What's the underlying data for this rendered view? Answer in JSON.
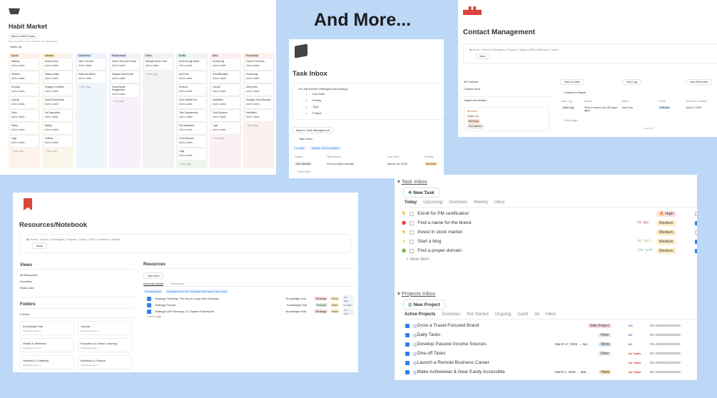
{
  "headline": "And More...",
  "habit_market": {
    "icon": "basket-icon",
    "title": "Habit Market",
    "back_button": "Back to Habit Tracker",
    "hint": "Press the button to add a habit to your habit tracker.",
    "view": "Habits List",
    "add_label": "Add to habits",
    "new_page": "+ New page",
    "columns": [
      {
        "name": "Sports",
        "bg": "#fdf3ec",
        "hd": "#f7d9c3",
        "items": [
          "Walking",
          "Workout",
          "Running",
          "Cycling",
          "Swim",
          "Hiking",
          "Yoga"
        ]
      },
      {
        "name": "Lifestyle",
        "bg": "#fbf6ea",
        "hd": "#f6e3a8",
        "items": [
          "Read a Book",
          "Wakeup Early",
          "Engage in Hobbies",
          "Avoid Social Media",
          "Eat Vegetables",
          "Baking",
          "Knitting"
        ]
      },
      {
        "name": "Cleanliness",
        "bg": "#eef5fb",
        "hd": "#cfe3f5",
        "items": [
          "Take a Shower",
          "Wash the dishes"
        ]
      },
      {
        "name": "Relationships",
        "bg": "#f6f1fb",
        "hd": "#e4d7f3",
        "items": [
          "Spend Time with Family",
          "Hangout with Friends",
          "Social Media Engagement"
        ]
      },
      {
        "name": "Detox",
        "bg": "#f3f3f2",
        "hd": "#e3e2e0",
        "items": [
          "Manage Screen Time"
        ]
      },
      {
        "name": "Health",
        "bg": "#eff6f0",
        "hd": "#d3e8d6",
        "items": [
          "Drink Enough Water",
          "Eat Fruits",
          "Workout",
          "Drink Healthy Tea",
          "Take Supplements",
          "Eat Vegetables",
          "Cold Exposure",
          "Yoga"
        ]
      },
      {
        "name": "Mind",
        "bg": "#fbf0f3",
        "hd": "#f4d6e0",
        "items": [
          "Envisioning",
          "Self-Affirmation",
          "Journal",
          "Meditation",
          "Cold Exposure",
          "Yoga"
        ]
      },
      {
        "name": "Productivity",
        "bg": "#fbf1ef",
        "hd": "#f5d8d2",
        "items": [
          "Plan for Tomorrow",
          "Envisioning",
          "Deep Work",
          "Strategic Time Allocation",
          "Meditation"
        ]
      }
    ]
  },
  "task_inbox_page": {
    "icon": "box-icon",
    "title": "Task Inbox",
    "callout": "You will find the strategies that missing:",
    "bullets": [
      "Due Date",
      "Priority",
      "Type",
      "Project"
    ],
    "back_button": "Back to Task Management",
    "view": "Task Inbox",
    "filters": [
      "4 rules",
      "Status: Not Complete"
    ],
    "columns": [
      "Status",
      "Task Name",
      "Due Date",
      "Priority"
    ],
    "row": {
      "status": "Not Started",
      "name": "Find a proper domain",
      "due": "March 28, 2025",
      "priority": "Medium"
    },
    "new_item": "+ New item"
  },
  "contact": {
    "icon": "people-icon",
    "title": "Contact Management",
    "nav": [
      "Home",
      "Visions",
      "Strategies",
      "Projects",
      "Tasks",
      "CRM",
      "Notebook",
      "Habits"
    ],
    "more": "More",
    "side": [
      "All Contacts",
      "Contact Inbox"
    ],
    "reminders": "Today's Reminders",
    "reminder": {
      "title": "Birthday",
      "person": "Hulia Lou",
      "tag": "Birthday",
      "status": "Not started"
    },
    "buttons": [
      "New Contact",
      "New Log",
      "New Reminder"
    ],
    "view": "Contacts to Reach",
    "columns": [
      "New Log",
      "Status",
      "Name",
      "Circle",
      "Next Due Contact"
    ],
    "row": {
      "log": "New Log",
      "status": "Time to reach out! (33 days ago)",
      "name": "John Doe",
      "circle": "Friends",
      "due": "June 5, 2025"
    },
    "new_page": "+ New page",
    "count_label": "COUNT",
    "count": "1"
  },
  "resources": {
    "icon": "bookmark-icon",
    "title": "Resources/Notebook",
    "nav": [
      "Home",
      "Visions",
      "Strategies",
      "Projects",
      "Tasks",
      "CRM",
      "Notebook",
      "Habits"
    ],
    "more": "More",
    "views_title": "Views",
    "views": [
      "All Resources",
      "Favorites",
      "Read Later"
    ],
    "folders_title": "Folders",
    "folders_view": "Folders",
    "folders": [
      {
        "name": "Knowledge Hub",
        "count": "Total Resources: 3"
      },
      {
        "name": "Journal",
        "count": "Total Resources: 0"
      },
      {
        "name": "Health & Wellness",
        "count": "Total Resources: 0"
      },
      {
        "name": "Education & Online Learning",
        "count": "Total Resources: 1"
      },
      {
        "name": "Hobbies & Creativity",
        "count": "Total Resources: 0"
      },
      {
        "name": "Business & Finance",
        "count": "Total Resources: 0"
      }
    ],
    "res_title": "Resources",
    "add_new": "Add New",
    "tabs": [
      "Recently Added",
      "Resources"
    ],
    "filters": [
      "Created time",
      "Created time: On or before One week from now"
    ],
    "rows": [
      {
        "name": "Strategic Thinking: The Key to Long-Term Success",
        "hub": "Knowledge Hub",
        "tag": "Strategy",
        "type": "Note",
        "age": "4d ago"
      },
      {
        "name": "Strategy Prompt",
        "hub": "Knowledge Hub",
        "tag": "Prompt",
        "type": "Note",
        "age": "4d ago"
      },
      {
        "name": "Strategic Life Planning: 12 Chapter Framework",
        "hub": "Knowledge Hub",
        "tag": "Strategy",
        "type": "Note",
        "age": "1d ago"
      }
    ],
    "new_page": "+ New page"
  },
  "tasks": {
    "title": "Task Inbox",
    "new_task": "New Task",
    "tabs": [
      "Today",
      "Upcoming",
      "Overdues",
      "Weekly",
      "Inbox"
    ],
    "rows": [
      {
        "name": "Enroll for PM certification",
        "icon": "hand",
        "when": "",
        "priority": "🔥 High",
        "pcolor": "#fbe0e0",
        "done": false
      },
      {
        "name": "Find a name for the brand.",
        "icon": "red",
        "when": "5d ago",
        "priority": "Medium",
        "pcolor": "#fbecc8",
        "done": true
      },
      {
        "name": "Invest in stock market",
        "icon": "hand",
        "when": "",
        "priority": "Medium",
        "pcolor": "#fbecc8",
        "done": false
      },
      {
        "name": "Start a blog",
        "icon": "bolt",
        "when": "3d left",
        "priority": "Medium",
        "pcolor": "#fbecc8",
        "done": true
      },
      {
        "name": "Find a proper domain",
        "icon": "green",
        "when": "17d left",
        "priority": "Medium",
        "pcolor": "#fbecc8",
        "done": true
      }
    ],
    "new_item": "New item",
    "projects_title": "Projects Inbox",
    "new_project": "New Project",
    "ptabs": [
      "Active Projects",
      "Overdues",
      "Not Started",
      "Ongoing",
      "Gantt",
      "All",
      "Inbox"
    ],
    "projects": [
      {
        "name": "Grow a Travel-Focused Brand",
        "date": "",
        "tag": "Side Project",
        "tcolor": "#f8dcea",
        "tasks": "0/3",
        "progress": "0%"
      },
      {
        "name": "Daily Tasks",
        "date": "",
        "tag": "Other",
        "tcolor": "#ececea",
        "tasks": "0/1",
        "progress": "0%"
      },
      {
        "name": "Develop Passive Income Sources",
        "date": "March 17, 2025 → Apr...",
        "tag": "Work",
        "tcolor": "#d6e6f5",
        "tasks": "0/1",
        "progress": "0%"
      },
      {
        "name": "One-off Tasks",
        "date": "",
        "tag": "Other",
        "tcolor": "#ececea",
        "tasks": "No Tasks",
        "progress": "0%"
      },
      {
        "name": "Launch a Remote Business Career",
        "date": "",
        "tag": "",
        "tcolor": "",
        "tasks": "No Tasks",
        "progress": "0%"
      },
      {
        "name": "Make Activewear & Gear Easily Accessible",
        "date": "March 1, 2025 → Mar...",
        "tag": "Habit",
        "tcolor": "#fbe6c0",
        "tasks": "No Tasks",
        "progress": "0%"
      }
    ],
    "progress_dots": "OOOOOOOOOO"
  }
}
